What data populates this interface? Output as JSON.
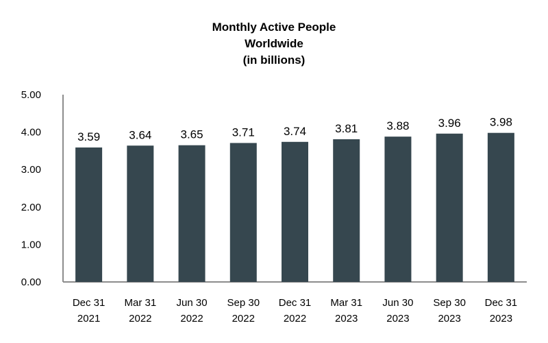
{
  "chart_data": {
    "type": "bar",
    "title_lines": [
      "Monthly Active People",
      "Worldwide",
      "(in billions)"
    ],
    "categories": [
      [
        "Dec 31",
        "2021"
      ],
      [
        "Mar 31",
        "2022"
      ],
      [
        "Jun 30",
        "2022"
      ],
      [
        "Sep 30",
        "2022"
      ],
      [
        "Dec 31",
        "2022"
      ],
      [
        "Mar 31",
        "2023"
      ],
      [
        "Jun 30",
        "2023"
      ],
      [
        "Sep 30",
        "2023"
      ],
      [
        "Dec 31",
        "2023"
      ]
    ],
    "values": [
      3.59,
      3.64,
      3.65,
      3.71,
      3.74,
      3.81,
      3.88,
      3.96,
      3.98
    ],
    "value_labels": [
      "3.59",
      "3.64",
      "3.65",
      "3.71",
      "3.74",
      "3.81",
      "3.88",
      "3.96",
      "3.98"
    ],
    "ylim": [
      0,
      5
    ],
    "y_ticks": [
      "0.00",
      "1.00",
      "2.00",
      "3.00",
      "4.00",
      "5.00"
    ],
    "grid": false,
    "bar_color": "#36474f",
    "axis_color": "#8c8c8c"
  }
}
